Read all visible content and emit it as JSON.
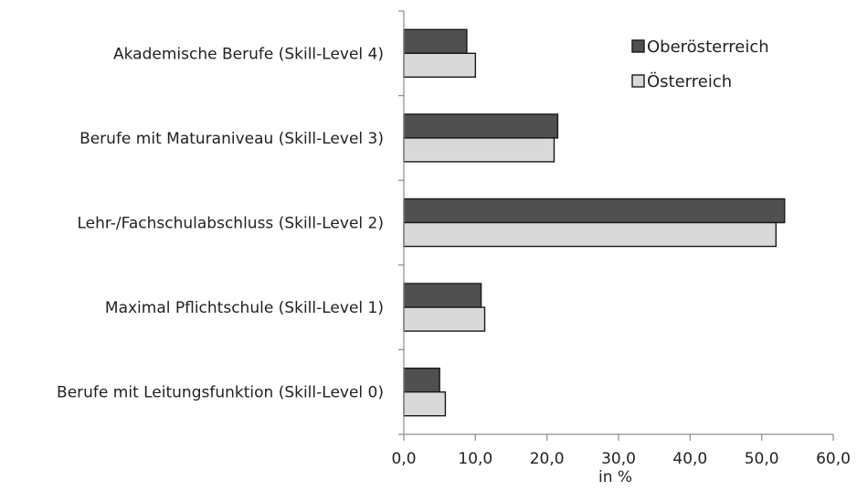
{
  "chart_data": {
    "type": "bar",
    "orientation": "horizontal",
    "categories": [
      "Akademische Berufe (Skill-Level 4)",
      "Berufe mit Maturaniveau (Skill-Level 3)",
      "Lehr-/Fachschulabschluss (Skill-Level 2)",
      "Maximal Pflichtschule (Skill-Level 1)",
      "Berufe mit Leitungsfunktion (Skill-Level 0)"
    ],
    "series": [
      {
        "name": "Oberösterreich",
        "color": "#505050",
        "values": [
          8.8,
          21.5,
          53.2,
          10.8,
          5.0
        ]
      },
      {
        "name": "Österreich",
        "color": "#d9d9d9",
        "values": [
          10.0,
          21.0,
          52.0,
          11.3,
          5.8
        ]
      }
    ],
    "xlabel": "in %",
    "xlim": [
      0,
      60
    ],
    "xticks": [
      0,
      10,
      20,
      30,
      40,
      50,
      60
    ],
    "xtick_labels": [
      "0,0",
      "10,0",
      "20,0",
      "30,0",
      "40,0",
      "50,0",
      "60,0"
    ],
    "grid": false,
    "legend_position": "top-right"
  }
}
